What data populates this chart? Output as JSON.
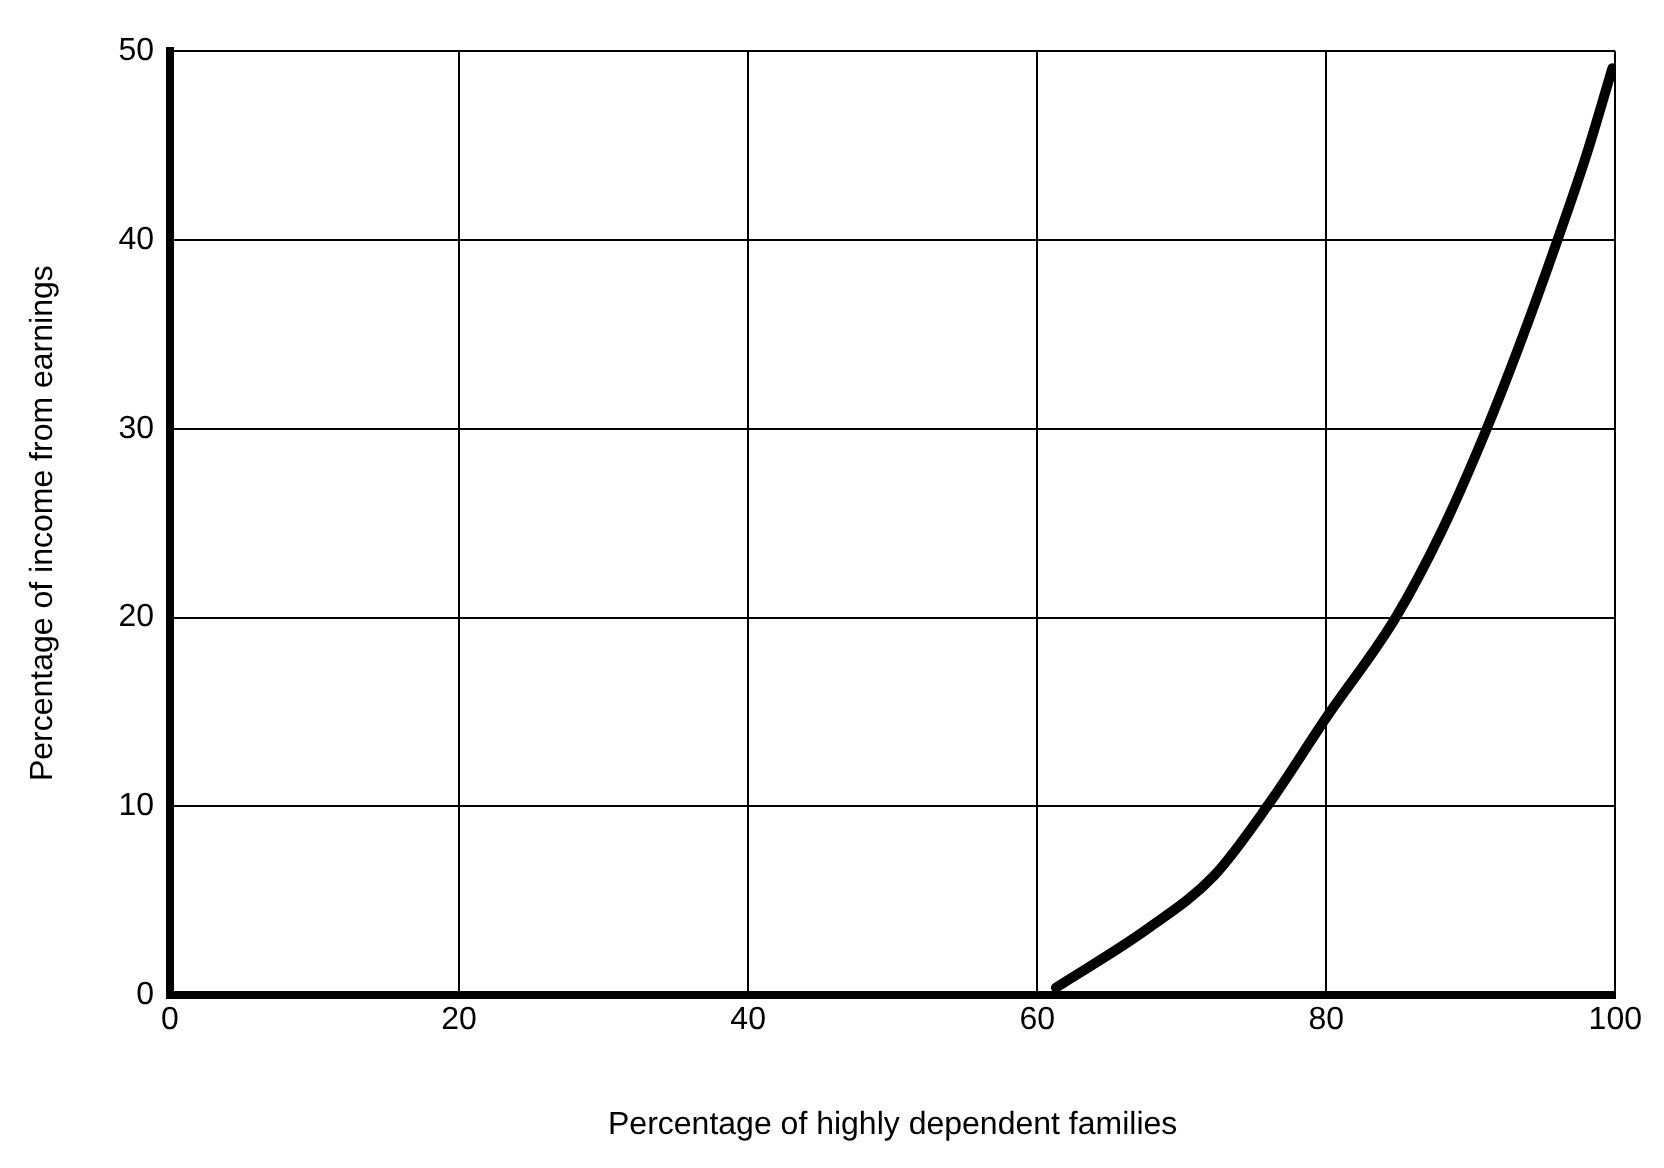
{
  "chart_data": {
    "type": "line",
    "xlabel": "Percentage of highly dependent families",
    "ylabel": "Percentage of income from earnings",
    "series": [
      {
        "color": "#000000",
        "x": [
          61.3,
          67.6,
          72.2,
          76.0,
          80.0,
          84.8,
          88.0,
          91.1,
          93.6,
          96.0,
          98.0,
          99.8
        ],
        "values": [
          0.4,
          3.5,
          6.3,
          10.1,
          14.7,
          20,
          24.6,
          30,
          34.9,
          40,
          44.5,
          49.1
        ]
      }
    ],
    "xlim": [
      0,
      100
    ],
    "xticks": [
      0,
      20,
      40,
      60,
      80,
      100
    ],
    "ylim": [
      0,
      50
    ],
    "yticks": [
      0,
      10,
      20,
      30,
      40,
      50
    ],
    "grid": true,
    "legend": false,
    "marker": "none",
    "line_style": "solid"
  }
}
